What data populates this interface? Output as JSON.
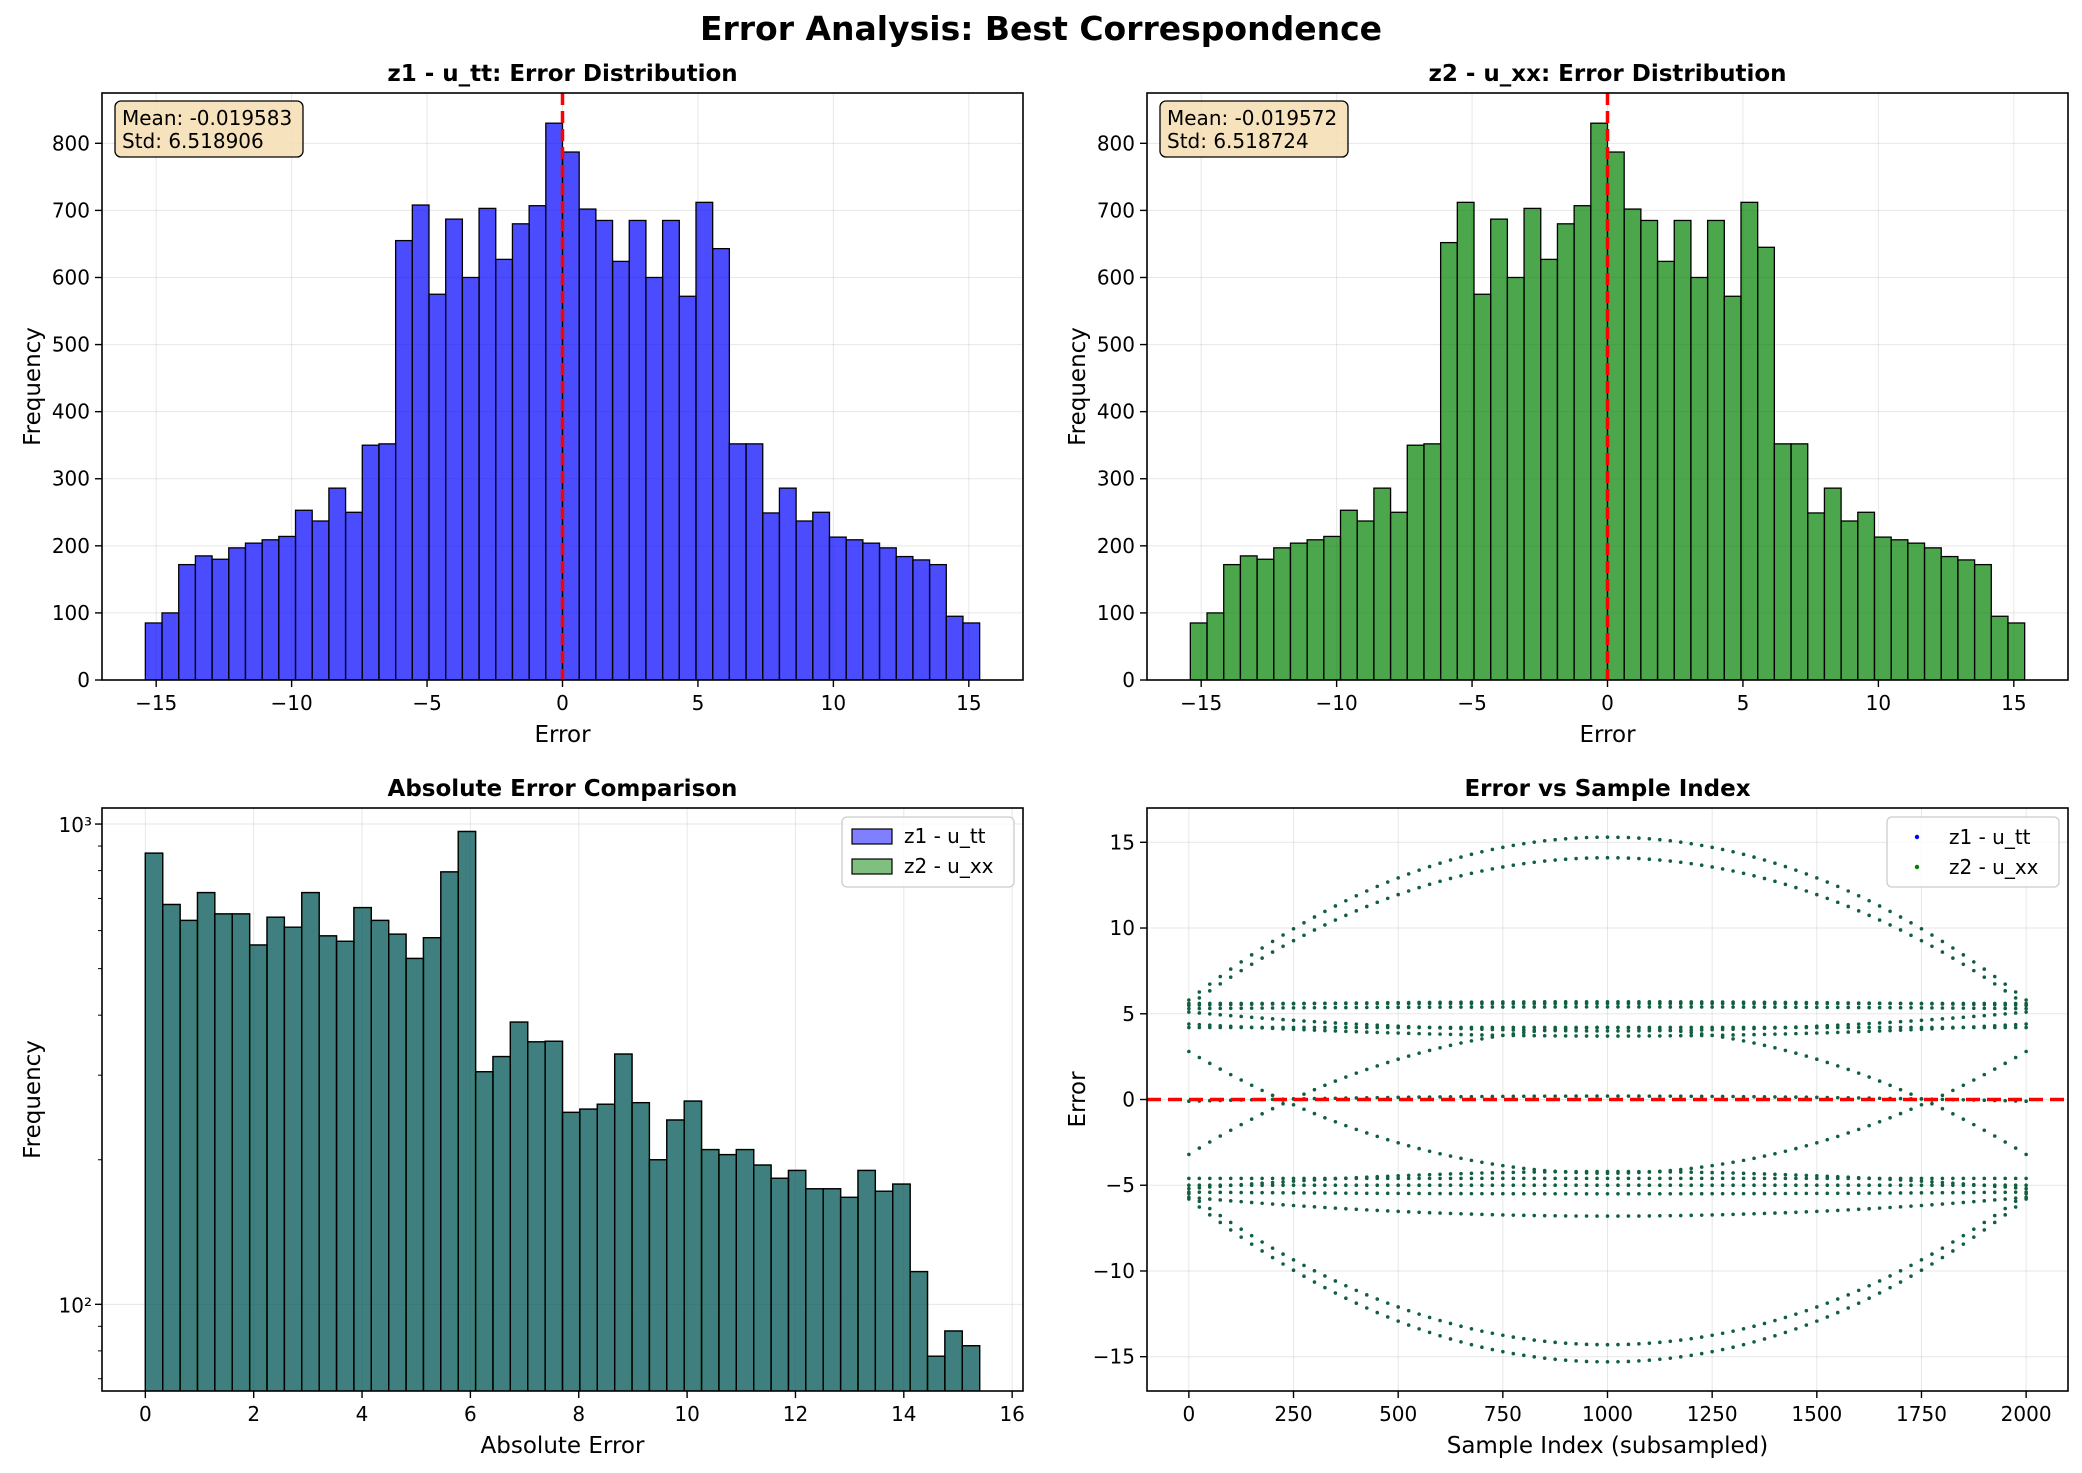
{
  "figure": {
    "title": "Error Analysis: Best Correspondence",
    "colors": {
      "blue": "#0000ff",
      "green": "#008000",
      "red": "#ff0000",
      "overlap": "#3f7f7f",
      "scatter": "#106040",
      "statbox": "#f5deb3"
    }
  },
  "chart_data": [
    {
      "type": "bar",
      "title": "z1 - u_tt: Error Distribution",
      "xlabel": "Error",
      "ylabel": "Frequency",
      "xlim": [
        -17,
        17
      ],
      "ylim": [
        0,
        875
      ],
      "xticks": [
        -15,
        -10,
        -5,
        0,
        5,
        10,
        15
      ],
      "xtick_labels": [
        "−15",
        "−10",
        "−5",
        "0",
        "5",
        "10",
        "15"
      ],
      "yticks": [
        0,
        100,
        200,
        300,
        400,
        500,
        600,
        700,
        800
      ],
      "bin_range": [
        -15.4,
        15.4
      ],
      "values": [
        85,
        100,
        172,
        185,
        180,
        197,
        204,
        209,
        214,
        253,
        237,
        286,
        250,
        350,
        352,
        655,
        708,
        575,
        687,
        600,
        703,
        627,
        680,
        707,
        830,
        787,
        702,
        685,
        624,
        685,
        600,
        685,
        572,
        712,
        643,
        352,
        352,
        249,
        286,
        237,
        250,
        213,
        209,
        204,
        197,
        184,
        179,
        172,
        95,
        85
      ],
      "color": "#0000ff",
      "grid": true,
      "mean_line": 0,
      "stats": {
        "mean": "Mean: -0.019583",
        "std": "Std: 6.518906"
      }
    },
    {
      "type": "bar",
      "title": "z2 - u_xx: Error Distribution",
      "xlabel": "Error",
      "ylabel": "Frequency",
      "xlim": [
        -17,
        17
      ],
      "ylim": [
        0,
        875
      ],
      "xticks": [
        -15,
        -10,
        -5,
        0,
        5,
        10,
        15
      ],
      "xtick_labels": [
        "−15",
        "−10",
        "−5",
        "0",
        "5",
        "10",
        "15"
      ],
      "yticks": [
        0,
        100,
        200,
        300,
        400,
        500,
        600,
        700,
        800
      ],
      "bin_range": [
        -15.4,
        15.4
      ],
      "values": [
        85,
        100,
        172,
        185,
        180,
        197,
        204,
        209,
        214,
        253,
        237,
        286,
        250,
        350,
        352,
        652,
        712,
        575,
        687,
        600,
        703,
        627,
        680,
        707,
        830,
        787,
        702,
        685,
        624,
        685,
        600,
        685,
        572,
        712,
        645,
        352,
        352,
        249,
        286,
        237,
        250,
        213,
        209,
        204,
        197,
        184,
        179,
        172,
        95,
        85
      ],
      "color": "#008000",
      "grid": true,
      "mean_line": 0,
      "stats": {
        "mean": "Mean: -0.019572",
        "std": "Std: 6.518724"
      }
    },
    {
      "type": "bar",
      "title": "Absolute Error Comparison",
      "xlabel": "Absolute Error",
      "ylabel": "Frequency",
      "yscale": "log",
      "xlim": [
        -0.8,
        16.2
      ],
      "ylim": [
        66,
        1080
      ],
      "xticks": [
        0,
        2,
        4,
        6,
        8,
        10,
        12,
        14,
        16
      ],
      "yticks_major": [
        100,
        1000
      ],
      "ytick_labels": [
        "10²",
        "10³"
      ],
      "yticks_minor": [
        70,
        80,
        90,
        200,
        300,
        400,
        500,
        600,
        700,
        800,
        900
      ],
      "bin_range": [
        0,
        15.4
      ],
      "values": [
        870,
        680,
        630,
        720,
        650,
        650,
        560,
        640,
        610,
        720,
        585,
        570,
        670,
        630,
        590,
        525,
        580,
        795,
        965,
        305,
        328,
        387,
        352,
        353,
        251,
        255,
        261,
        332,
        263,
        200,
        242,
        265,
        210,
        205,
        210,
        195,
        183,
        190,
        174,
        174,
        167,
        190,
        172,
        178,
        117,
        78,
        88,
        82
      ],
      "series": [
        {
          "name": "z1 - u_tt",
          "color": "#0000ff"
        },
        {
          "name": "z2 - u_xx",
          "color": "#008000"
        }
      ],
      "legend": "top-right",
      "grid": true
    },
    {
      "type": "scatter",
      "title": "Error vs Sample Index",
      "xlabel": "Sample Index (subsampled)",
      "ylabel": "Error",
      "xlim": [
        -100,
        2100
      ],
      "ylim": [
        -17,
        17
      ],
      "xticks": [
        0,
        250,
        500,
        750,
        1000,
        1250,
        1500,
        1750,
        2000
      ],
      "yticks": [
        -15,
        -10,
        -5,
        0,
        5,
        10,
        15
      ],
      "ytick_labels": [
        "−15",
        "−10",
        "−5",
        "0",
        "5",
        "10",
        "15"
      ],
      "x_range": [
        0,
        2000
      ],
      "series": [
        {
          "name": "z1 - u_tt",
          "color": "#0000ff"
        },
        {
          "name": "z2 - u_xx",
          "color": "#008000"
        }
      ],
      "curves": [
        {
          "start": 5.8,
          "mid": 15.3
        },
        {
          "start": 5.5,
          "mid": 14.1
        },
        {
          "start": 5.6,
          "mid": 5.6
        },
        {
          "start": 5.5,
          "mid": 5.7
        },
        {
          "start": 5.3,
          "mid": 5.4
        },
        {
          "start": 4.4,
          "mid": 3.7
        },
        {
          "start": 4.2,
          "mid": 4.2
        },
        {
          "start": 5.1,
          "mid": 4.0
        },
        {
          "start": 2.8,
          "mid": -4.3
        },
        {
          "start": -3.2,
          "mid": 4.2
        },
        {
          "start": -0.1,
          "mid": 0.2
        },
        {
          "start": -4.6,
          "mid": -4.6
        },
        {
          "start": -5.2,
          "mid": -4.2
        },
        {
          "start": -5.0,
          "mid": -5.0
        },
        {
          "start": -5.4,
          "mid": -5.5
        },
        {
          "start": -5.7,
          "mid": -6.8
        },
        {
          "start": -5.5,
          "mid": -14.3
        },
        {
          "start": -5.8,
          "mid": -15.3
        }
      ],
      "zero_line": 0,
      "legend": "top-right",
      "grid": true
    }
  ]
}
